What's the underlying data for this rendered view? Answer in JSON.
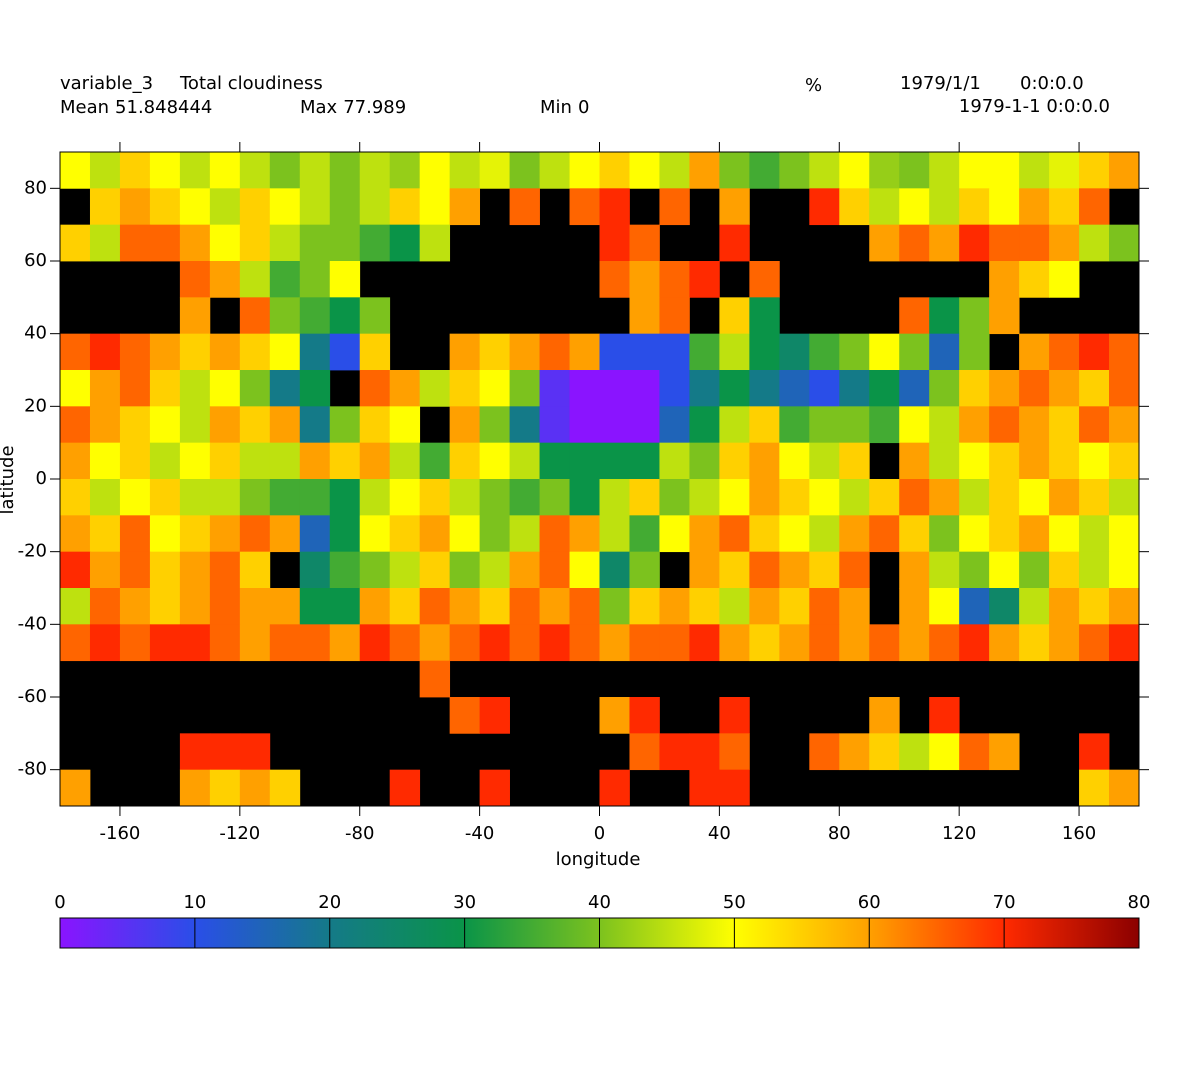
{
  "chart_data": {
    "type": "heatmap",
    "title": "variable_3",
    "subtitle": "Total cloudiness",
    "unit": "%",
    "date": "1979/1/1",
    "time": "0:0:0.0",
    "datetime": "1979-1-1 0:0:0.0",
    "stats": [
      {
        "label": "Mean",
        "value": 51.848444
      },
      {
        "label": "Max",
        "value": 77.989
      },
      {
        "label": "Min",
        "value": 0
      }
    ],
    "xlabel": "longitude",
    "ylabel": "latitude",
    "xlim": [
      -180,
      180
    ],
    "ylim": [
      -90,
      90
    ],
    "xticks": [
      -160,
      -120,
      -80,
      -40,
      0,
      40,
      80,
      120,
      160
    ],
    "yticks": [
      -80,
      -60,
      -40,
      -20,
      0,
      20,
      40,
      60,
      80
    ],
    "x": [
      -175,
      -165,
      -155,
      -145,
      -135,
      -125,
      -115,
      -105,
      -95,
      -85,
      -75,
      -65,
      -55,
      -45,
      -35,
      -25,
      -15,
      -5,
      5,
      15,
      25,
      35,
      45,
      55,
      65,
      75,
      85,
      95,
      105,
      115,
      125,
      135,
      145,
      155,
      165,
      175
    ],
    "y": [
      85,
      75,
      65,
      55,
      45,
      35,
      25,
      15,
      5,
      -5,
      -15,
      -25,
      -35,
      -45,
      -55,
      -65,
      -75,
      -85
    ],
    "values": [
      [
        50,
        45,
        55,
        50,
        45,
        50,
        45,
        40,
        45,
        40,
        45,
        42,
        50,
        45,
        48,
        40,
        45,
        50,
        55,
        50,
        45,
        60,
        40,
        35,
        40,
        45,
        50,
        42,
        40,
        45,
        50,
        50,
        45,
        48,
        55,
        60
      ],
      [
        null,
        55,
        60,
        55,
        50,
        45,
        55,
        50,
        45,
        40,
        45,
        55,
        50,
        60,
        null,
        65,
        null,
        65,
        70,
        null,
        65,
        null,
        60,
        null,
        null,
        70,
        55,
        45,
        50,
        45,
        55,
        50,
        60,
        55,
        65,
        null
      ],
      [
        55,
        45,
        65,
        65,
        60,
        50,
        55,
        45,
        40,
        40,
        35,
        30,
        45,
        null,
        null,
        null,
        null,
        null,
        70,
        65,
        null,
        null,
        70,
        null,
        null,
        null,
        null,
        60,
        65,
        60,
        70,
        65,
        65,
        60,
        45,
        40
      ],
      [
        null,
        null,
        null,
        null,
        65,
        60,
        45,
        35,
        40,
        50,
        null,
        null,
        null,
        null,
        null,
        null,
        null,
        null,
        65,
        60,
        65,
        70,
        null,
        65,
        null,
        null,
        null,
        null,
        null,
        null,
        null,
        60,
        55,
        50,
        null,
        null
      ],
      [
        null,
        null,
        null,
        null,
        60,
        null,
        65,
        40,
        35,
        30,
        40,
        null,
        null,
        null,
        null,
        null,
        null,
        null,
        null,
        60,
        65,
        null,
        55,
        30,
        null,
        null,
        null,
        null,
        65,
        30,
        40,
        60,
        null,
        null,
        null,
        null
      ],
      [
        65,
        70,
        65,
        60,
        55,
        60,
        55,
        50,
        20,
        10,
        55,
        null,
        null,
        60,
        55,
        60,
        65,
        60,
        10,
        10,
        10,
        35,
        45,
        30,
        25,
        35,
        40,
        50,
        40,
        15,
        40,
        null,
        60,
        65,
        70,
        65
      ],
      [
        50,
        60,
        65,
        55,
        45,
        50,
        40,
        20,
        30,
        null,
        65,
        60,
        45,
        55,
        50,
        40,
        5,
        0,
        0,
        0,
        10,
        20,
        30,
        20,
        15,
        10,
        20,
        30,
        15,
        40,
        55,
        60,
        65,
        60,
        55,
        65
      ],
      [
        65,
        60,
        55,
        50,
        45,
        60,
        55,
        60,
        20,
        40,
        55,
        50,
        null,
        60,
        40,
        20,
        5,
        0,
        0,
        0,
        15,
        30,
        45,
        55,
        35,
        40,
        40,
        35,
        50,
        45,
        60,
        65,
        60,
        55,
        65,
        60
      ],
      [
        60,
        50,
        55,
        45,
        50,
        55,
        45,
        45,
        60,
        55,
        60,
        45,
        35,
        55,
        50,
        45,
        30,
        30,
        30,
        30,
        45,
        40,
        55,
        60,
        50,
        45,
        55,
        null,
        60,
        45,
        50,
        55,
        60,
        55,
        50,
        55
      ],
      [
        55,
        45,
        50,
        55,
        45,
        45,
        40,
        35,
        35,
        30,
        45,
        50,
        55,
        45,
        40,
        35,
        40,
        30,
        45,
        55,
        40,
        45,
        50,
        60,
        55,
        50,
        45,
        55,
        65,
        60,
        45,
        55,
        50,
        60,
        55,
        45
      ],
      [
        60,
        55,
        65,
        50,
        55,
        60,
        65,
        60,
        15,
        30,
        50,
        55,
        60,
        50,
        40,
        45,
        65,
        60,
        45,
        35,
        50,
        60,
        65,
        55,
        50,
        45,
        60,
        65,
        55,
        40,
        50,
        55,
        60,
        50,
        45,
        50
      ],
      [
        70,
        60,
        65,
        55,
        60,
        65,
        55,
        null,
        25,
        35,
        40,
        45,
        55,
        40,
        45,
        60,
        65,
        50,
        25,
        40,
        null,
        60,
        55,
        65,
        60,
        55,
        65,
        null,
        60,
        45,
        40,
        50,
        40,
        55,
        45,
        50
      ],
      [
        45,
        65,
        60,
        55,
        60,
        65,
        60,
        60,
        30,
        30,
        60,
        55,
        65,
        60,
        55,
        65,
        60,
        65,
        40,
        55,
        60,
        55,
        45,
        60,
        55,
        65,
        60,
        null,
        60,
        50,
        15,
        25,
        45,
        60,
        55,
        60
      ],
      [
        65,
        70,
        65,
        70,
        70,
        65,
        60,
        65,
        65,
        60,
        70,
        65,
        60,
        65,
        70,
        65,
        70,
        65,
        60,
        65,
        65,
        70,
        60,
        55,
        60,
        65,
        60,
        65,
        60,
        65,
        70,
        60,
        55,
        60,
        65,
        70
      ],
      [
        null,
        null,
        null,
        null,
        null,
        null,
        null,
        null,
        null,
        null,
        null,
        null,
        65,
        null,
        null,
        null,
        null,
        null,
        null,
        null,
        null,
        null,
        null,
        null,
        null,
        null,
        null,
        null,
        null,
        null,
        null,
        null,
        null,
        null,
        null,
        null
      ],
      [
        null,
        null,
        null,
        null,
        null,
        null,
        null,
        null,
        null,
        null,
        null,
        null,
        null,
        65,
        70,
        null,
        null,
        null,
        60,
        70,
        null,
        null,
        70,
        null,
        null,
        null,
        null,
        60,
        null,
        70,
        null,
        null,
        null,
        null,
        null,
        null
      ],
      [
        null,
        null,
        null,
        null,
        70,
        70,
        70,
        null,
        null,
        null,
        null,
        null,
        null,
        null,
        null,
        null,
        null,
        null,
        null,
        65,
        70,
        70,
        65,
        null,
        null,
        65,
        60,
        55,
        45,
        50,
        65,
        60,
        null,
        null,
        70,
        null
      ],
      [
        60,
        null,
        null,
        null,
        60,
        55,
        60,
        55,
        null,
        null,
        null,
        70,
        null,
        null,
        70,
        null,
        null,
        null,
        70,
        null,
        null,
        70,
        70,
        null,
        null,
        null,
        null,
        null,
        null,
        null,
        null,
        null,
        null,
        null,
        55,
        60
      ]
    ],
    "missing_color": "#000000",
    "colorbar": {
      "lim": [
        0,
        80
      ],
      "ticks": [
        0,
        10,
        20,
        30,
        40,
        50,
        60,
        70,
        80
      ],
      "colors": [
        "#8a14ff",
        "#2a4ee8",
        "#147a88",
        "#0a9448",
        "#7cc21e",
        "#ffff00",
        "#ffa000",
        "#ff2a00",
        "#8b0000"
      ]
    }
  }
}
